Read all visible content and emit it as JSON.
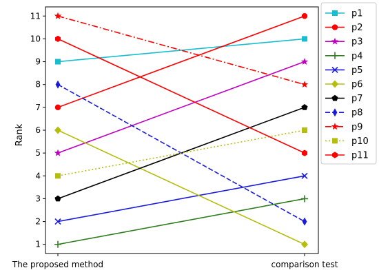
{
  "chart_data": {
    "type": "line",
    "categories": [
      "The proposed method",
      "comparison test"
    ],
    "ylabel": "Rank",
    "xlabel": "",
    "ylim": [
      0.6,
      11.4
    ],
    "yticks": [
      1,
      2,
      3,
      4,
      5,
      6,
      7,
      8,
      9,
      10,
      11
    ],
    "grid": false,
    "legend_position": "outside-top-right",
    "series": [
      {
        "name": "p1",
        "values": [
          9,
          10
        ],
        "color": "#17becf",
        "dash": "solid",
        "marker": "square"
      },
      {
        "name": "p2",
        "values": [
          7,
          11
        ],
        "color": "#ff0000",
        "dash": "solid",
        "marker": "circle"
      },
      {
        "name": "p3",
        "values": [
          5,
          9
        ],
        "color": "#c000c0",
        "dash": "solid",
        "marker": "star"
      },
      {
        "name": "p4",
        "values": [
          1,
          3
        ],
        "color": "#2e7d1e",
        "dash": "solid",
        "marker": "plus"
      },
      {
        "name": "p5",
        "values": [
          2,
          4
        ],
        "color": "#1a1adb",
        "dash": "solid",
        "marker": "x"
      },
      {
        "name": "p6",
        "values": [
          6,
          1
        ],
        "color": "#b5bd0e",
        "dash": "solid",
        "marker": "diamond"
      },
      {
        "name": "p7",
        "values": [
          3,
          7
        ],
        "color": "#000000",
        "dash": "solid",
        "marker": "pentagon"
      },
      {
        "name": "p8",
        "values": [
          8,
          2
        ],
        "color": "#1a1adb",
        "dash": "dashed",
        "marker": "thin_diamond"
      },
      {
        "name": "p9",
        "values": [
          11,
          8
        ],
        "color": "#ff0000",
        "dash": "dashdot",
        "marker": "star"
      },
      {
        "name": "p10",
        "values": [
          4,
          6
        ],
        "color": "#b5bd0e",
        "dash": "dotted",
        "marker": "square"
      },
      {
        "name": "p11",
        "values": [
          10,
          5
        ],
        "color": "#ff0000",
        "dash": "solid",
        "marker": "hexagon"
      }
    ]
  }
}
